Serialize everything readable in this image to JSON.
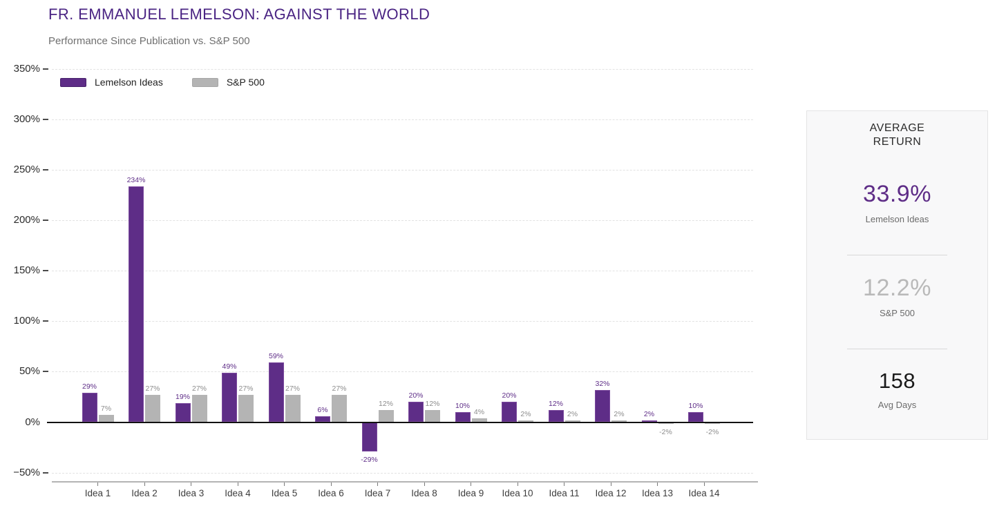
{
  "header": {
    "title": "FR. EMMANUEL LEMELSON: AGAINST THE WORLD",
    "subtitle": "Performance Since Publication vs. S&P 500"
  },
  "legend": [
    {
      "label": "Lemelson Ideas",
      "color": "#5e2d87"
    },
    {
      "label": "S&P 500",
      "color": "#b4b4b4"
    }
  ],
  "chart_data": {
    "type": "bar",
    "title": "FR. EMMANUEL LEMELSON: AGAINST THE WORLD",
    "subtitle": "Performance Since Publication vs. S&P 500",
    "categories": [
      "Idea 1",
      "Idea 2",
      "Idea 3",
      "Idea 4",
      "Idea 5",
      "Idea 6",
      "Idea 7",
      "Idea 8",
      "Idea 9",
      "Idea 10",
      "Idea 11",
      "Idea 12",
      "Idea 13",
      "Idea 14"
    ],
    "series": [
      {
        "name": "Lemelson Ideas",
        "color": "#5e2d87",
        "label_color": "#5e2d87",
        "values": [
          29,
          234,
          19,
          49,
          59,
          6,
          -29,
          20,
          10,
          20,
          12,
          32,
          2,
          10
        ]
      },
      {
        "name": "S&P 500",
        "color": "#b4b4b4",
        "label_color": "#8c8c8c",
        "values": [
          7,
          27,
          27,
          27,
          27,
          27,
          12,
          12,
          4,
          2,
          2,
          2,
          -2,
          -2
        ]
      }
    ],
    "yticks": [
      350,
      300,
      250,
      200,
      150,
      100,
      50,
      0,
      -50
    ],
    "ytick_labels": [
      "350%",
      "300%",
      "250%",
      "200%",
      "150%",
      "100%",
      "50%",
      "0%",
      "−50%"
    ],
    "ylim": [
      -50,
      350
    ],
    "xlabel": "",
    "ylabel": "",
    "grid": "horizontal-dashed",
    "legend_position": "top-left",
    "value_label_suffix": "%"
  },
  "stats_panel": {
    "title": "AVERAGE RETURN",
    "stats": [
      {
        "value": "33.9%",
        "label": "Lemelson Ideas",
        "color": "#5e2d87"
      },
      {
        "value": "12.2%",
        "label": "S&P 500",
        "color": "#b9b9b9"
      },
      {
        "value": "158",
        "label": "Avg Days",
        "color": "#1a1a1a"
      }
    ]
  }
}
